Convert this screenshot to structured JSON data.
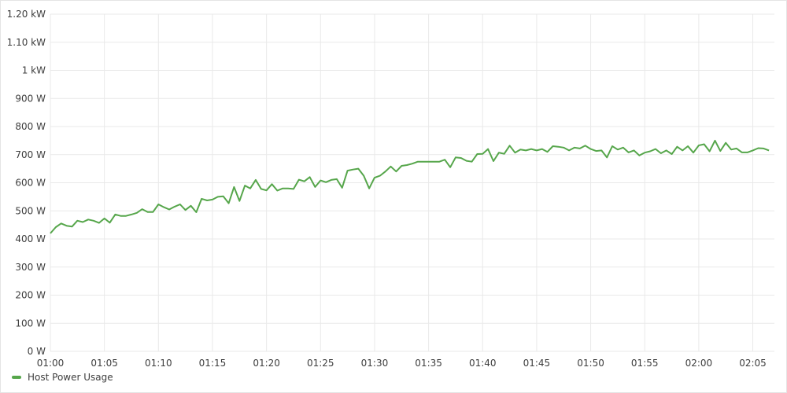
{
  "chart_data": {
    "type": "line",
    "y_ticks": [
      {
        "value": 0,
        "label": "0 W"
      },
      {
        "value": 100,
        "label": "100 W"
      },
      {
        "value": 200,
        "label": "200 W"
      },
      {
        "value": 300,
        "label": "300 W"
      },
      {
        "value": 400,
        "label": "400 W"
      },
      {
        "value": 500,
        "label": "500 W"
      },
      {
        "value": 600,
        "label": "600 W"
      },
      {
        "value": 700,
        "label": "700 W"
      },
      {
        "value": 800,
        "label": "800 W"
      },
      {
        "value": 900,
        "label": "900 W"
      },
      {
        "value": 1000,
        "label": "1 kW"
      },
      {
        "value": 1100,
        "label": "1.10 kW"
      },
      {
        "value": 1200,
        "label": "1.20 kW"
      }
    ],
    "ylim": [
      0,
      1200
    ],
    "x_ticks": [
      "01:00",
      "01:05",
      "01:10",
      "01:15",
      "01:20",
      "01:25",
      "01:30",
      "01:35",
      "01:40",
      "01:45",
      "01:50",
      "01:55",
      "02:00",
      "02:05"
    ],
    "x_start": "01:00",
    "x_end": "02:07",
    "grid": true,
    "legend_position": "bottom-left",
    "series": [
      {
        "name": "Host Power Usage",
        "color": "#56a64b",
        "points": [
          [
            "01:00",
            420
          ],
          [
            "01:00.5",
            442
          ],
          [
            "01:01",
            455
          ],
          [
            "01:01.5",
            447
          ],
          [
            "01:02",
            444
          ],
          [
            "01:02.5",
            465
          ],
          [
            "01:03",
            460
          ],
          [
            "01:03.5",
            469
          ],
          [
            "01:04",
            465
          ],
          [
            "01:04.5",
            457
          ],
          [
            "01:05",
            473
          ],
          [
            "01:05.5",
            458
          ],
          [
            "01:06",
            487
          ],
          [
            "01:06.5",
            482
          ],
          [
            "01:07",
            482
          ],
          [
            "01:07.5",
            487
          ],
          [
            "01:08",
            493
          ],
          [
            "01:08.5",
            506
          ],
          [
            "01:09",
            496
          ],
          [
            "01:09.5",
            496
          ],
          [
            "01:10",
            523
          ],
          [
            "01:10.5",
            513
          ],
          [
            "01:11",
            505
          ],
          [
            "01:11.5",
            515
          ],
          [
            "01:12",
            523
          ],
          [
            "01:12.5",
            503
          ],
          [
            "01:13",
            518
          ],
          [
            "01:13.5",
            495
          ],
          [
            "01:14",
            543
          ],
          [
            "01:14.5",
            537
          ],
          [
            "01:15",
            540
          ],
          [
            "01:15.5",
            550
          ],
          [
            "01:16",
            552
          ],
          [
            "01:16.5",
            527
          ],
          [
            "01:17",
            585
          ],
          [
            "01:17.5",
            535
          ],
          [
            "01:18",
            590
          ],
          [
            "01:18.5",
            580
          ],
          [
            "01:19",
            610
          ],
          [
            "01:19.5",
            578
          ],
          [
            "01:20",
            573
          ],
          [
            "01:20.5",
            595
          ],
          [
            "01:21",
            572
          ],
          [
            "01:21.5",
            580
          ],
          [
            "01:22",
            580
          ],
          [
            "01:22.5",
            578
          ],
          [
            "01:23",
            611
          ],
          [
            "01:23.5",
            605
          ],
          [
            "01:24",
            620
          ],
          [
            "01:24.5",
            585
          ],
          [
            "01:25",
            608
          ],
          [
            "01:25.5",
            602
          ],
          [
            "01:26",
            610
          ],
          [
            "01:26.5",
            613
          ],
          [
            "01:27",
            582
          ],
          [
            "01:27.5",
            643
          ],
          [
            "01:28",
            647
          ],
          [
            "01:28.5",
            650
          ],
          [
            "01:29",
            625
          ],
          [
            "01:29.5",
            580
          ],
          [
            "01:30",
            618
          ],
          [
            "01:30.5",
            625
          ],
          [
            "01:31",
            640
          ],
          [
            "01:31.5",
            658
          ],
          [
            "01:32",
            640
          ],
          [
            "01:32.5",
            660
          ],
          [
            "01:33",
            663
          ],
          [
            "01:33.5",
            668
          ],
          [
            "01:34",
            675
          ],
          [
            "01:35",
            675
          ],
          [
            "01:36",
            675
          ],
          [
            "01:36.5",
            682
          ],
          [
            "01:37",
            655
          ],
          [
            "01:37.5",
            690
          ],
          [
            "01:38",
            688
          ],
          [
            "01:38.5",
            678
          ],
          [
            "01:39",
            675
          ],
          [
            "01:39.5",
            702
          ],
          [
            "01:40",
            703
          ],
          [
            "01:40.5",
            720
          ],
          [
            "01:41",
            677
          ],
          [
            "01:41.5",
            707
          ],
          [
            "01:42",
            703
          ],
          [
            "01:42.5",
            732
          ],
          [
            "01:43",
            707
          ],
          [
            "01:43.5",
            718
          ],
          [
            "01:44",
            715
          ],
          [
            "01:44.5",
            720
          ],
          [
            "01:45",
            715
          ],
          [
            "01:45.5",
            720
          ],
          [
            "01:46",
            710
          ],
          [
            "01:46.5",
            730
          ],
          [
            "01:47",
            728
          ],
          [
            "01:47.5",
            725
          ],
          [
            "01:48",
            715
          ],
          [
            "01:48.5",
            725
          ],
          [
            "01:49",
            722
          ],
          [
            "01:49.5",
            732
          ],
          [
            "01:50",
            720
          ],
          [
            "01:50.5",
            713
          ],
          [
            "01:51",
            715
          ],
          [
            "01:51.5",
            690
          ],
          [
            "01:52",
            730
          ],
          [
            "01:52.5",
            718
          ],
          [
            "01:53",
            725
          ],
          [
            "01:53.5",
            708
          ],
          [
            "01:54",
            715
          ],
          [
            "01:54.5",
            697
          ],
          [
            "01:55",
            707
          ],
          [
            "01:55.5",
            712
          ],
          [
            "01:56",
            720
          ],
          [
            "01:56.5",
            705
          ],
          [
            "01:57",
            715
          ],
          [
            "01:57.5",
            702
          ],
          [
            "01:58",
            728
          ],
          [
            "01:58.5",
            715
          ],
          [
            "01:59",
            730
          ],
          [
            "01:59.5",
            707
          ],
          [
            "02:00",
            733
          ],
          [
            "02:00.5",
            737
          ],
          [
            "02:01",
            712
          ],
          [
            "02:01.5",
            750
          ],
          [
            "02:02",
            713
          ],
          [
            "02:02.5",
            742
          ],
          [
            "02:03",
            718
          ],
          [
            "02:03.5",
            722
          ],
          [
            "02:04",
            708
          ],
          [
            "02:04.5",
            708
          ],
          [
            "02:05",
            715
          ],
          [
            "02:05.5",
            723
          ],
          [
            "02:06",
            722
          ],
          [
            "02:06.5",
            715
          ]
        ]
      }
    ]
  }
}
